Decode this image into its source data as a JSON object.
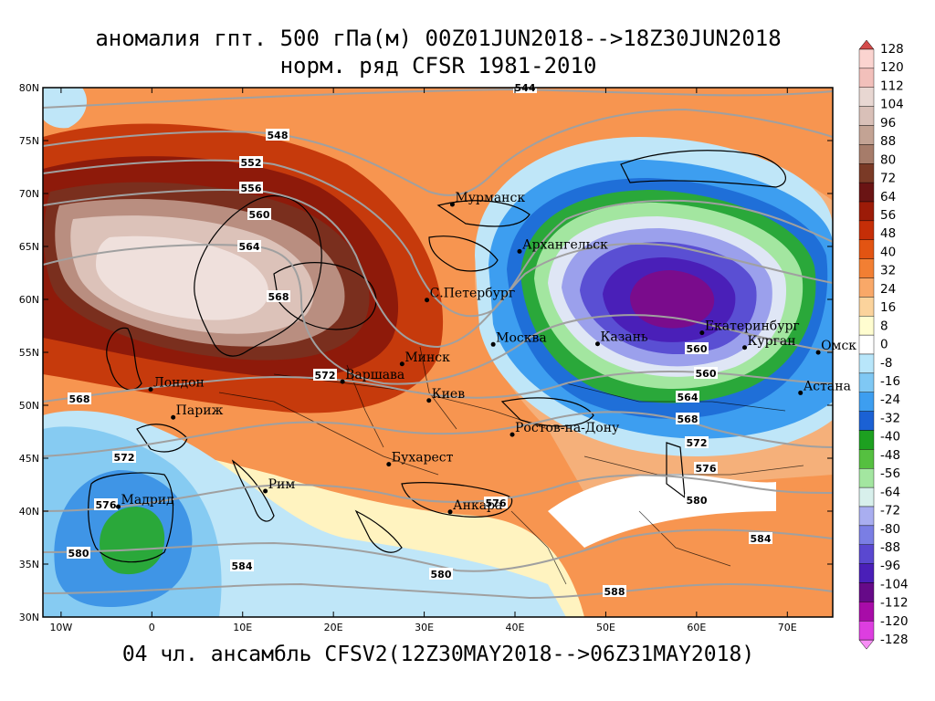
{
  "title": {
    "line1": "аномалия гпт. 500 гПа(м) 00Z01JUN2018-->18Z30JUN2018",
    "line2": "норм. ряд CFSR 1981-2010"
  },
  "footer": "04 чл. ансамбль CFSV2(12Z30MAY2018-->06Z31MAY2018)",
  "axes": {
    "lon_ticks": [
      "10W",
      "0",
      "10E",
      "20E",
      "30E",
      "40E",
      "50E",
      "60E",
      "70E"
    ],
    "lat_ticks": [
      "30N",
      "35N",
      "40N",
      "45N",
      "50N",
      "55N",
      "60N",
      "65N",
      "70N",
      "75N",
      "80N"
    ]
  },
  "colorbar": {
    "labels": [
      "128",
      "120",
      "112",
      "104",
      "96",
      "88",
      "80",
      "72",
      "64",
      "56",
      "48",
      "40",
      "32",
      "24",
      "16",
      "8",
      "0",
      "-8",
      "-16",
      "-24",
      "-32",
      "-40",
      "-48",
      "-56",
      "-64",
      "-72",
      "-80",
      "-88",
      "-96",
      "-104",
      "-112",
      "-120",
      "-128"
    ],
    "colors": [
      "#fce7e7",
      "#fbd4d0",
      "#f2c0bb",
      "#e8d7d2",
      "#d9c0b8",
      "#c3a394",
      "#a67c6a",
      "#7a3a26",
      "#6a1414",
      "#9c1b08",
      "#c52e07",
      "#e25412",
      "#f27f33",
      "#f9a868",
      "#fbd39c",
      "#fffdd0",
      "#ffffff",
      "#b8e6fa",
      "#7fc8f4",
      "#3d9ef0",
      "#1b61d4",
      "#1da020",
      "#55c040",
      "#a3e6a0",
      "#d8f0ec",
      "#a9aef0",
      "#7a7ee4",
      "#5a48d0",
      "#4a1fb8",
      "#660a88",
      "#a80ca8",
      "#dd3ee0",
      "#f78ef5"
    ]
  },
  "cities": [
    {
      "name": "Мурманск",
      "lon": 33.1,
      "lat": 68.97
    },
    {
      "name": "Архангельск",
      "lon": 40.5,
      "lat": 64.54
    },
    {
      "name": "С.Петербург",
      "lon": 30.3,
      "lat": 59.94
    },
    {
      "name": "Москва",
      "lon": 37.6,
      "lat": 55.75
    },
    {
      "name": "Казань",
      "lon": 49.1,
      "lat": 55.8
    },
    {
      "name": "Екатеринбург",
      "lon": 60.6,
      "lat": 56.84
    },
    {
      "name": "Курган",
      "lon": 65.3,
      "lat": 55.45
    },
    {
      "name": "Омск",
      "lon": 73.4,
      "lat": 54.99
    },
    {
      "name": "Астана",
      "lon": 71.45,
      "lat": 51.17
    },
    {
      "name": "Минск",
      "lon": 27.56,
      "lat": 53.9
    },
    {
      "name": "Киев",
      "lon": 30.52,
      "lat": 50.45
    },
    {
      "name": "Варшава",
      "lon": 21.0,
      "lat": 52.23
    },
    {
      "name": "Лондон",
      "lon": -0.13,
      "lat": 51.5
    },
    {
      "name": "Париж",
      "lon": 2.35,
      "lat": 48.86
    },
    {
      "name": "Ростов-на-Дону",
      "lon": 39.7,
      "lat": 47.23
    },
    {
      "name": "Бухарест",
      "lon": 26.1,
      "lat": 44.43
    },
    {
      "name": "Рим",
      "lon": 12.5,
      "lat": 41.9
    },
    {
      "name": "Анкара",
      "lon": 32.86,
      "lat": 39.93
    },
    {
      "name": "Мадрид",
      "lon": -3.7,
      "lat": 40.42
    }
  ],
  "contour_labels": [
    "544",
    "548",
    "552",
    "556",
    "560",
    "564",
    "568",
    "572",
    "576",
    "580",
    "584",
    "588"
  ]
}
